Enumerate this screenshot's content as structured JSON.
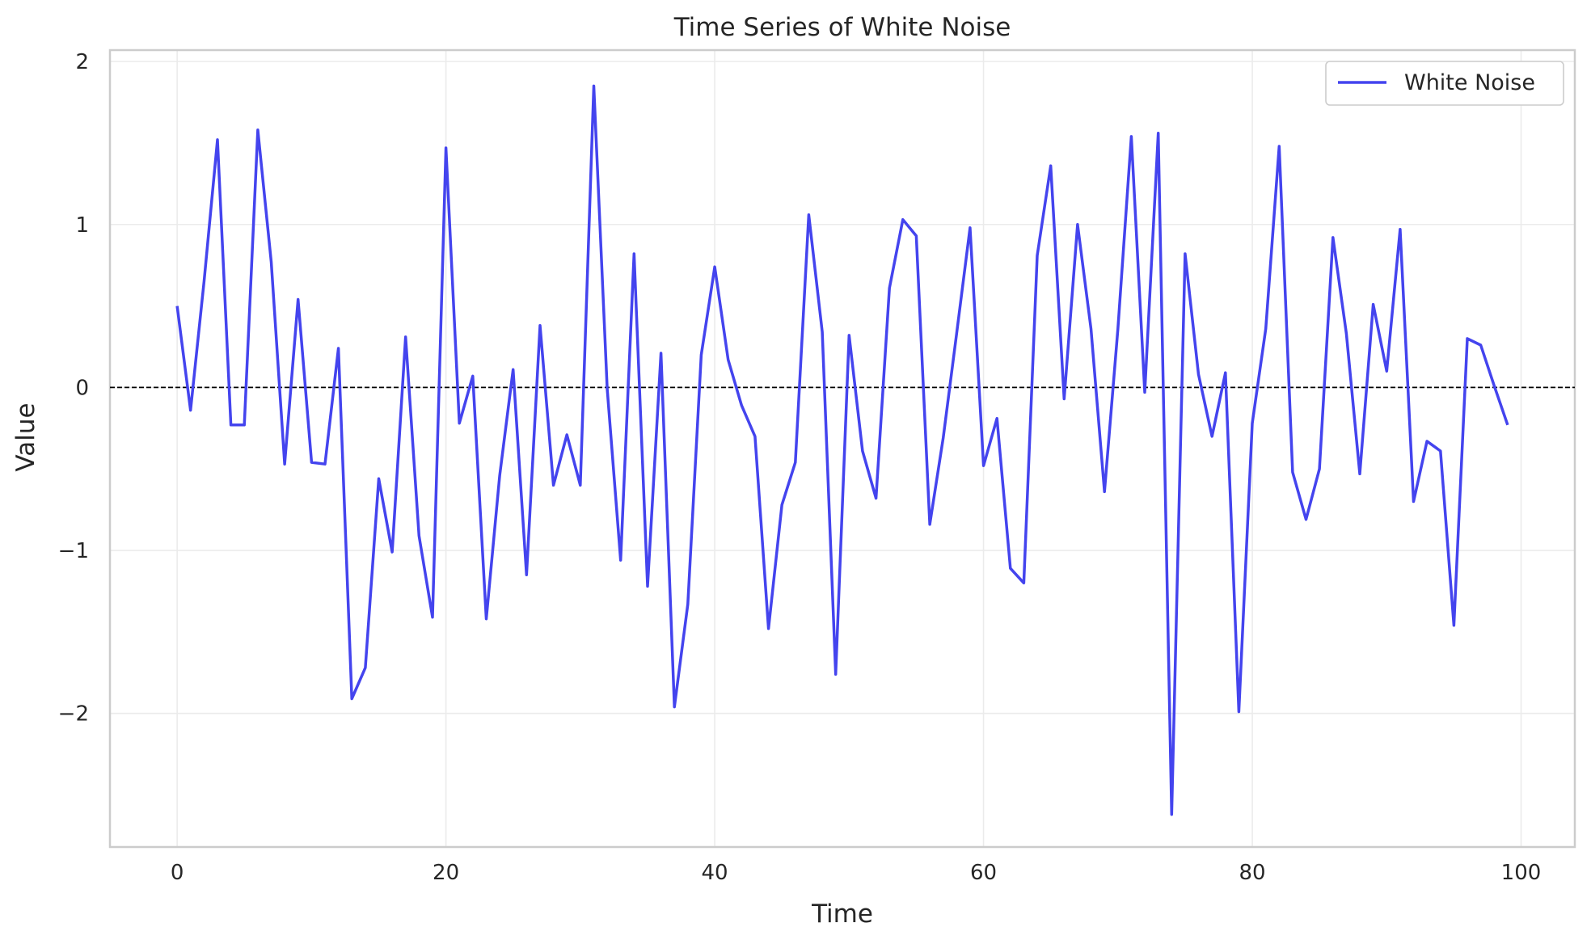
{
  "chart_data": {
    "type": "line",
    "title": "Time Series of White Noise",
    "xlabel": "Time",
    "ylabel": "Value",
    "xlim": [
      -5,
      104
    ],
    "ylim": [
      -2.82,
      2.07
    ],
    "xticks": [
      0,
      20,
      40,
      60,
      80,
      100
    ],
    "yticks": [
      -2,
      -1,
      0,
      1,
      2
    ],
    "xtick_labels": [
      "0",
      "20",
      "40",
      "60",
      "80",
      "100"
    ],
    "ytick_labels": [
      "−2",
      "−1",
      "0",
      "1",
      "2"
    ],
    "grid": true,
    "legend_position": "top-right",
    "reference_line": {
      "y": 0,
      "style": "dashed",
      "color": "#000000"
    },
    "series": [
      {
        "name": "White Noise",
        "color": "#4444ee",
        "x": [
          0,
          1,
          2,
          3,
          4,
          5,
          6,
          7,
          8,
          9,
          10,
          11,
          12,
          13,
          14,
          15,
          16,
          17,
          18,
          19,
          20,
          21,
          22,
          23,
          24,
          25,
          26,
          27,
          28,
          29,
          30,
          31,
          32,
          33,
          34,
          35,
          36,
          37,
          38,
          39,
          40,
          41,
          42,
          43,
          44,
          45,
          46,
          47,
          48,
          49,
          50,
          51,
          52,
          53,
          54,
          55,
          56,
          57,
          58,
          59,
          60,
          61,
          62,
          63,
          64,
          65,
          66,
          67,
          68,
          69,
          70,
          71,
          72,
          73,
          74,
          75,
          76,
          77,
          78,
          79,
          80,
          81,
          82,
          83,
          84,
          85,
          86,
          87,
          88,
          89,
          90,
          91,
          92,
          93,
          94,
          95,
          96,
          97,
          98,
          99
        ],
        "values": [
          0.5,
          -0.14,
          0.65,
          1.52,
          -0.23,
          -0.23,
          1.58,
          0.77,
          -0.47,
          0.54,
          -0.46,
          -0.47,
          0.24,
          -1.91,
          -1.72,
          -0.56,
          -1.01,
          0.31,
          -0.91,
          -1.41,
          1.47,
          -0.22,
          0.07,
          -1.42,
          -0.54,
          0.11,
          -1.15,
          0.38,
          -0.6,
          -0.29,
          -0.6,
          1.85,
          -0.01,
          -1.06,
          0.82,
          -1.22,
          0.21,
          -1.96,
          -1.33,
          0.2,
          0.74,
          0.17,
          -0.11,
          -0.3,
          -1.48,
          -0.72,
          -0.46,
          1.06,
          0.34,
          -1.76,
          0.32,
          -0.39,
          -0.68,
          0.61,
          1.03,
          0.93,
          -0.84,
          -0.31,
          0.33,
          0.98,
          -0.48,
          -0.19,
          -1.11,
          -1.2,
          0.81,
          1.36,
          -0.07,
          1.0,
          0.36,
          -0.64,
          0.36,
          1.54,
          -0.03,
          1.56,
          -2.62,
          0.82,
          0.08,
          -0.3,
          0.09,
          -1.99,
          -0.22,
          0.36,
          1.48,
          -0.52,
          -0.81,
          -0.5,
          0.92,
          0.33,
          -0.53,
          0.51,
          0.1,
          0.97,
          -0.7,
          -0.33,
          -0.39,
          -1.46,
          0.3,
          0.26,
          0.01,
          -0.23
        ]
      }
    ]
  }
}
